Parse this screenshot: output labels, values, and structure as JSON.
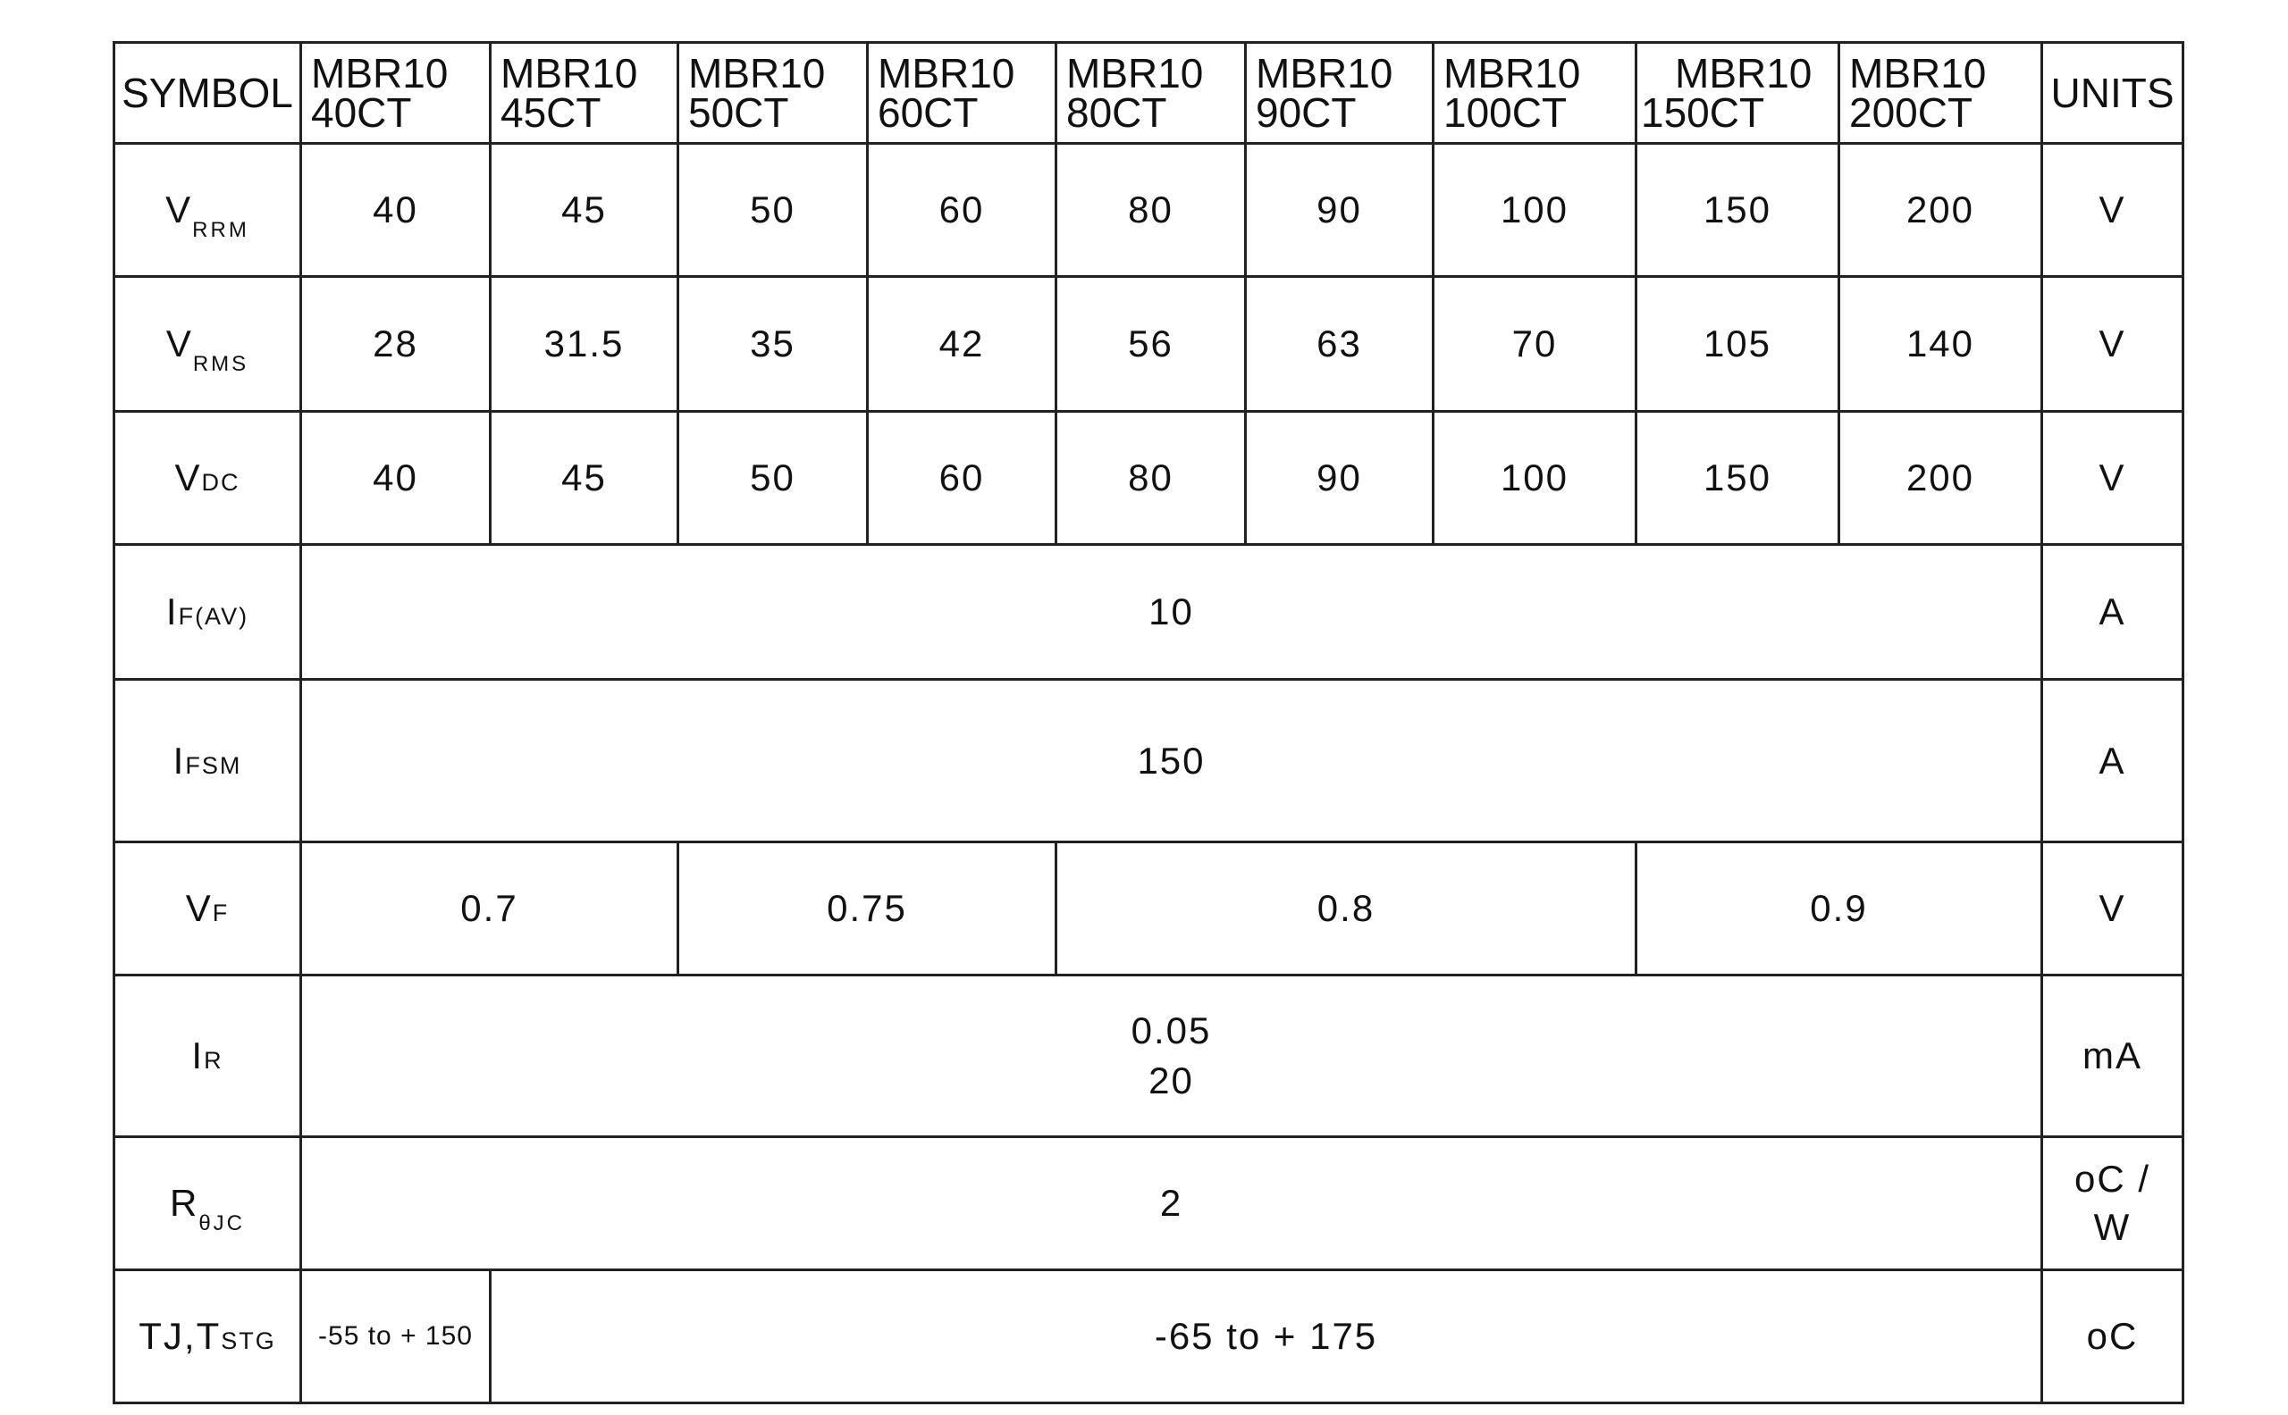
{
  "header": {
    "symbol": "SYMBOL",
    "units": "UNITS",
    "parts": [
      {
        "l1": "MBR10",
        "l2": "40CT"
      },
      {
        "l1": "MBR10",
        "l2": "45CT"
      },
      {
        "l1": "MBR10",
        "l2": "50CT"
      },
      {
        "l1": "MBR10",
        "l2": "60CT"
      },
      {
        "l1": "MBR10",
        "l2": "80CT"
      },
      {
        "l1": "MBR10",
        "l2": "90CT"
      },
      {
        "l1": "MBR10",
        "l2": "100CT"
      },
      {
        "l1": "MBR10",
        "l2": "150CT"
      },
      {
        "l1": "MBR10",
        "l2": "200CT"
      }
    ]
  },
  "rows": {
    "vrrm": {
      "sym": "V",
      "sub": "RRM",
      "values": [
        "40",
        "45",
        "50",
        "60",
        "80",
        "90",
        "100",
        "150",
        "200"
      ],
      "unit": "V"
    },
    "vrms": {
      "sym": "V",
      "sub": "RMS",
      "values": [
        "28",
        "31.5",
        "35",
        "42",
        "56",
        "63",
        "70",
        "105",
        "140"
      ],
      "unit": "V"
    },
    "vdc": {
      "sym": "V",
      "sub": "DC",
      "values": [
        "40",
        "45",
        "50",
        "60",
        "80",
        "90",
        "100",
        "150",
        "200"
      ],
      "unit": "V"
    },
    "ifav": {
      "sym": "I",
      "sub": "F(AV)",
      "value": "10",
      "unit": "A"
    },
    "ifsm": {
      "sym": "I",
      "sub": "FSM",
      "value": "150",
      "unit": "A"
    },
    "vf": {
      "sym": "V",
      "sub": "F",
      "values": [
        "0.7",
        "0.75",
        "0.8",
        "0.9"
      ],
      "unit": "V"
    },
    "ir": {
      "sym": "I",
      "sub": "R",
      "value1": "0.05",
      "value2": "20",
      "unit": "mA"
    },
    "rthjc": {
      "sym": "R",
      "sub": "θJC",
      "value": "2",
      "unit1": "oC /",
      "unit2": "W"
    },
    "tj": {
      "sym": "TJ,T",
      "sub": "STG",
      "value1": "-55 to + 150",
      "value2": "-65 to + 175",
      "unit": "oC"
    }
  }
}
